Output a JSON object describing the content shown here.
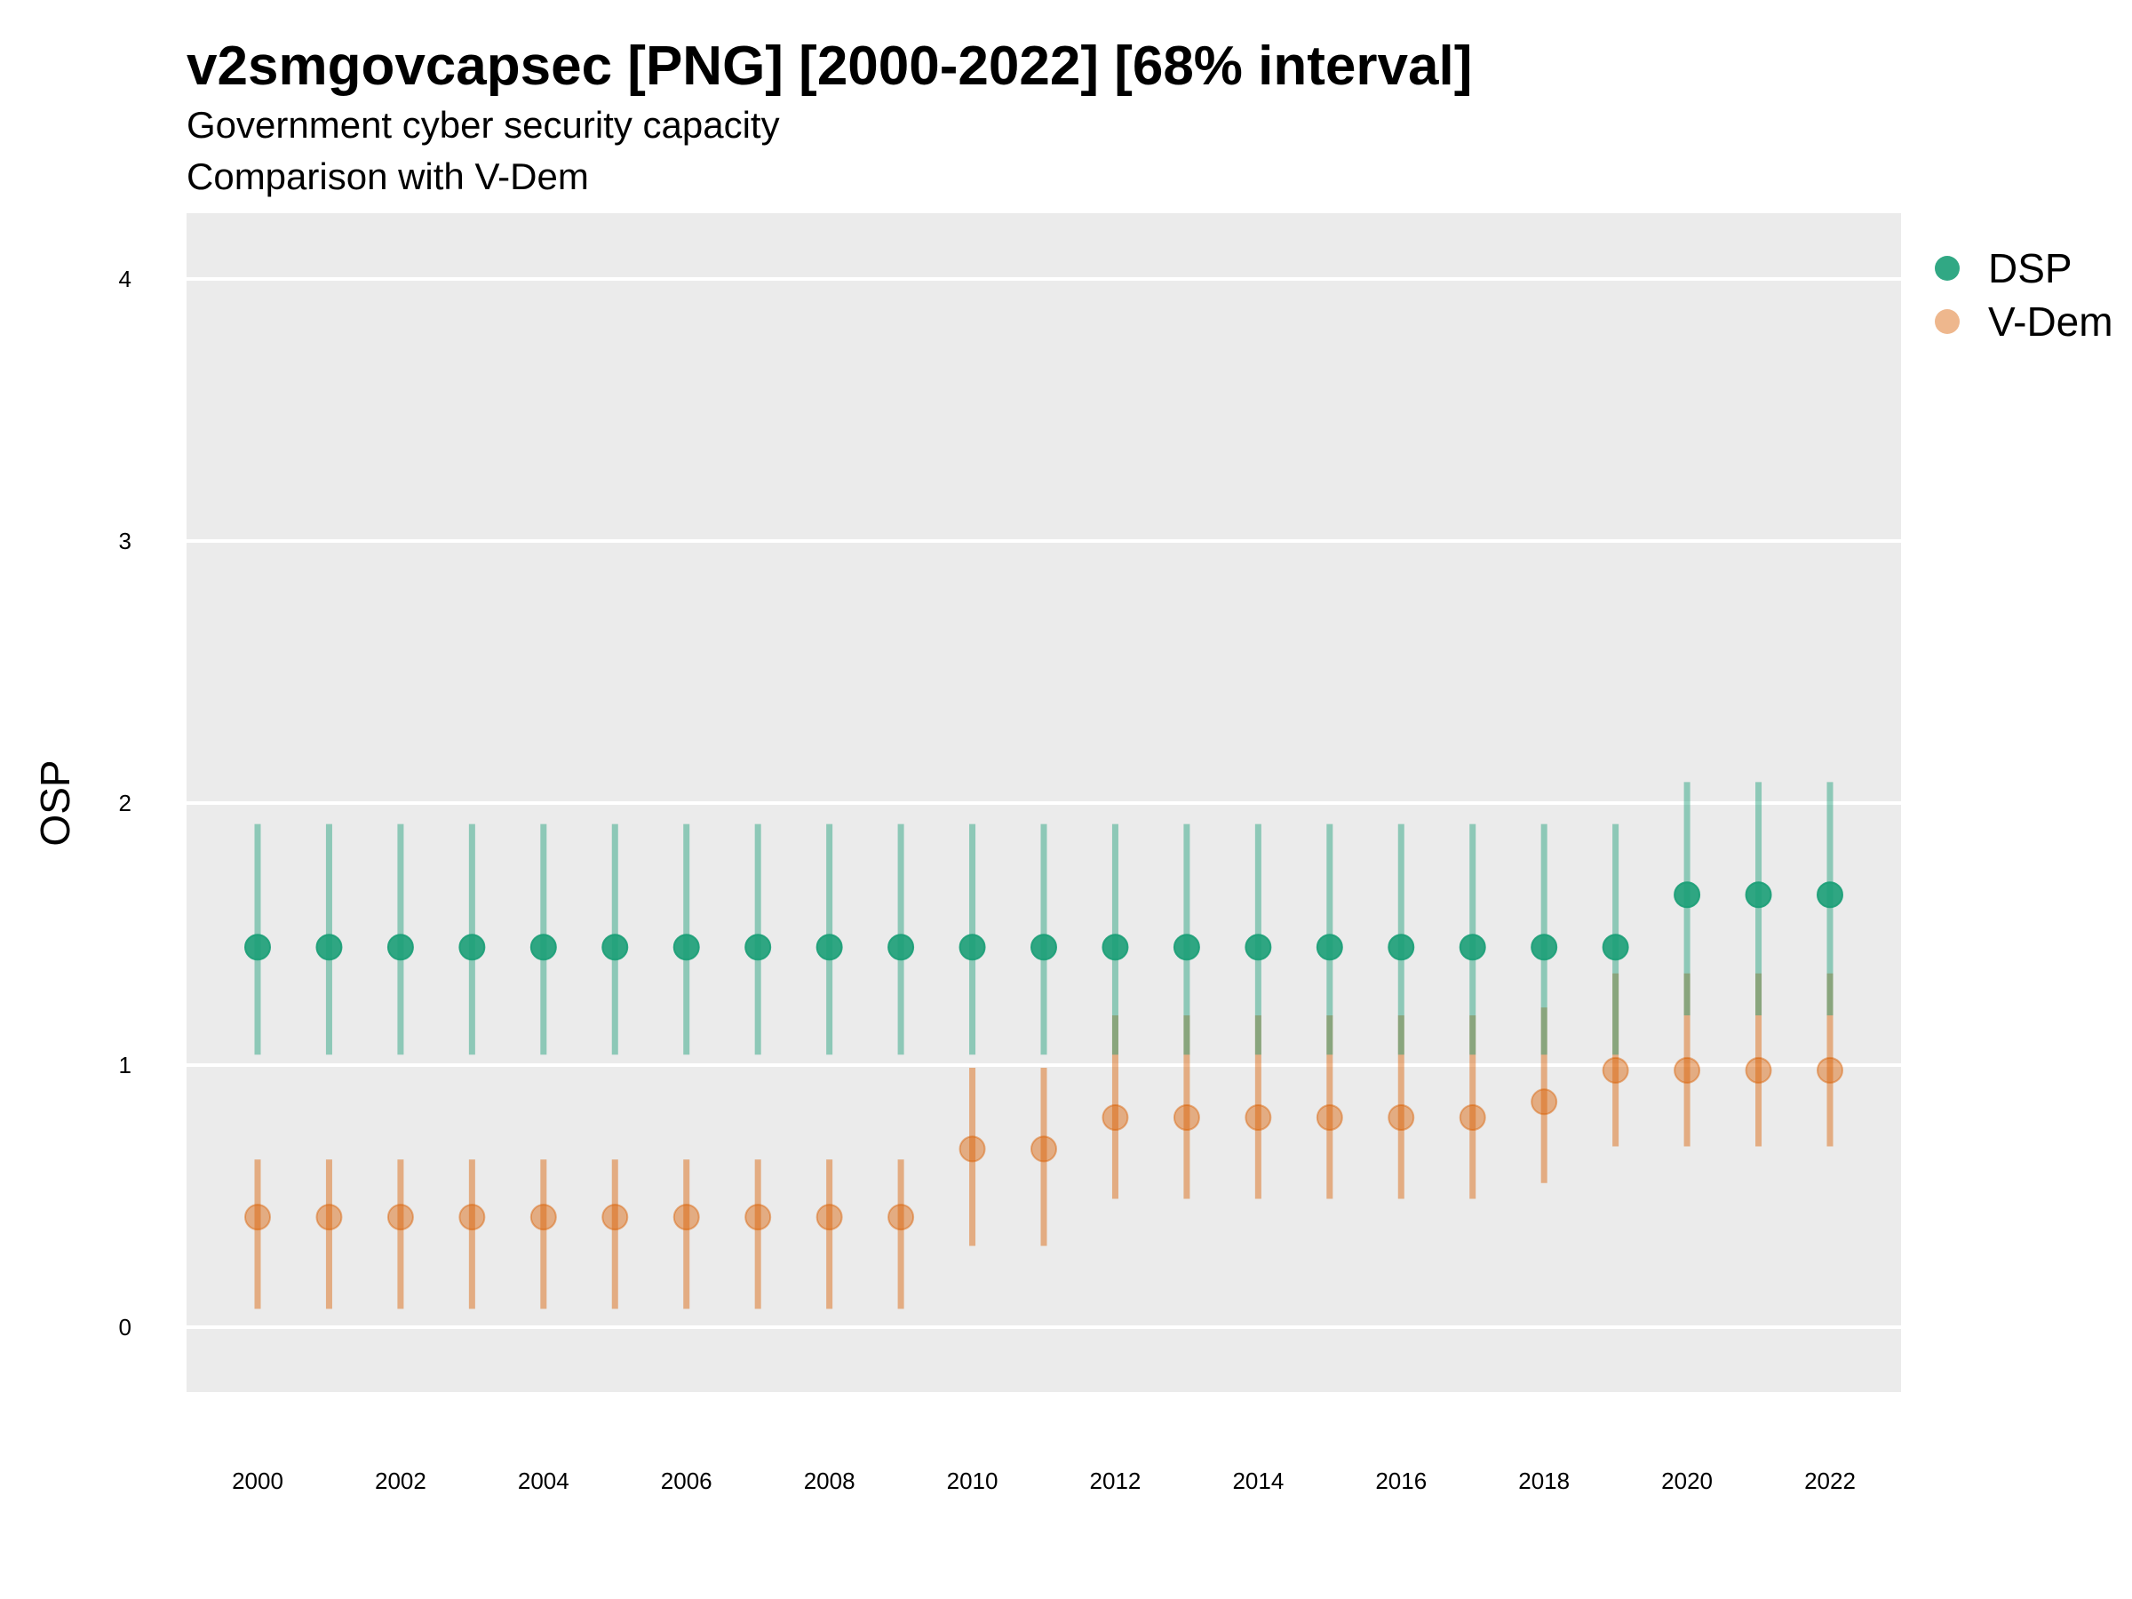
{
  "chart_data": {
    "type": "scatter",
    "title": "v2smgovcapsec [PNG] [2000-2022] [68% interval]",
    "subtitle": "Government cyber security capacity",
    "subtitle2": "Comparison with V-Dem",
    "xlabel": "",
    "ylabel": "OSP",
    "ylim": [
      -0.25,
      4.25
    ],
    "yticks": [
      0,
      1,
      2,
      3,
      4
    ],
    "x": [
      2000,
      2001,
      2002,
      2003,
      2004,
      2005,
      2006,
      2007,
      2008,
      2009,
      2010,
      2011,
      2012,
      2013,
      2014,
      2015,
      2016,
      2017,
      2018,
      2019,
      2020,
      2021,
      2022
    ],
    "xticks": [
      2000,
      2002,
      2004,
      2006,
      2008,
      2010,
      2012,
      2014,
      2016,
      2018,
      2020,
      2022
    ],
    "grid": true,
    "legend_position": "right-top",
    "series": [
      {
        "name": "DSP",
        "color": "#1b9e77",
        "values": [
          1.45,
          1.45,
          1.45,
          1.45,
          1.45,
          1.45,
          1.45,
          1.45,
          1.45,
          1.45,
          1.45,
          1.45,
          1.45,
          1.45,
          1.45,
          1.45,
          1.45,
          1.45,
          1.45,
          1.45,
          1.65,
          1.65,
          1.65
        ],
        "lower": [
          1.04,
          1.04,
          1.04,
          1.04,
          1.04,
          1.04,
          1.04,
          1.04,
          1.04,
          1.04,
          1.04,
          1.04,
          1.04,
          1.04,
          1.04,
          1.04,
          1.04,
          1.04,
          1.04,
          1.04,
          1.19,
          1.19,
          1.19
        ],
        "upper": [
          1.92,
          1.92,
          1.92,
          1.92,
          1.92,
          1.92,
          1.92,
          1.92,
          1.92,
          1.92,
          1.92,
          1.92,
          1.92,
          1.92,
          1.92,
          1.92,
          1.92,
          1.92,
          1.92,
          1.92,
          2.08,
          2.08,
          2.08
        ]
      },
      {
        "name": "V-Dem",
        "color": "#d95f02",
        "values": [
          0.42,
          0.42,
          0.42,
          0.42,
          0.42,
          0.42,
          0.42,
          0.42,
          0.42,
          0.42,
          0.68,
          0.68,
          0.8,
          0.8,
          0.8,
          0.8,
          0.8,
          0.8,
          0.86,
          0.98,
          0.98,
          0.98,
          0.98
        ],
        "lower": [
          0.07,
          0.07,
          0.07,
          0.07,
          0.07,
          0.07,
          0.07,
          0.07,
          0.07,
          0.07,
          0.31,
          0.31,
          0.49,
          0.49,
          0.49,
          0.49,
          0.49,
          0.49,
          0.55,
          0.69,
          0.69,
          0.69,
          0.69
        ],
        "upper": [
          0.64,
          0.64,
          0.64,
          0.64,
          0.64,
          0.64,
          0.64,
          0.64,
          0.64,
          0.64,
          0.99,
          0.99,
          1.19,
          1.19,
          1.19,
          1.19,
          1.19,
          1.19,
          1.22,
          1.35,
          1.35,
          1.35,
          1.35
        ]
      }
    ]
  }
}
